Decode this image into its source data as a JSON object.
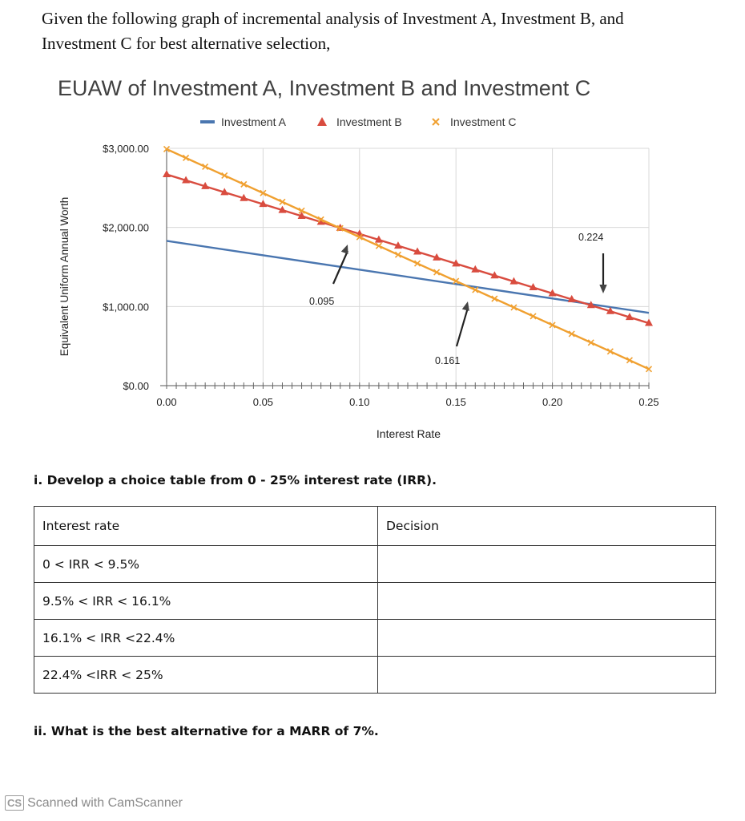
{
  "intro": {
    "text": "Given the following graph of incremental analysis of Investment A, Investment B, and Investment C for best alternative selection,"
  },
  "chart_data": {
    "type": "line",
    "title": "EUAW of Investment A, Investment B and Investment C",
    "xlabel": "Interest Rate",
    "ylabel": "Equivalent Uniform Annual Worth",
    "xlim": [
      0,
      0.25
    ],
    "ylim": [
      0,
      3000
    ],
    "x_ticks": [
      "0.00",
      "0.05",
      "0.10",
      "0.15",
      "0.20",
      "0.25"
    ],
    "y_ticks": [
      "$0.00",
      "$1,000.00",
      "$2,000.00",
      "$3,000.00"
    ],
    "legend_position": "top",
    "series": [
      {
        "name": "Investment A",
        "color": "#4a76b0",
        "marker": "none",
        "x": [
          0,
          0.25
        ],
        "y": [
          1830,
          920
        ]
      },
      {
        "name": "Investment B",
        "color": "#d94c3f",
        "marker": "triangle",
        "x": [
          0,
          0.25
        ],
        "y": [
          2670,
          790
        ]
      },
      {
        "name": "Investment C",
        "color": "#f0a030",
        "marker": "x",
        "x": [
          0,
          0.25
        ],
        "y": [
          2990,
          210
        ]
      }
    ],
    "annotations": [
      {
        "label": "0.095",
        "x": 0.095
      },
      {
        "label": "0.161",
        "x": 0.161
      },
      {
        "label": "0.224",
        "x": 0.224
      }
    ]
  },
  "question1": "i. Develop a choice table from 0 - 25% interest rate (IRR).",
  "table": {
    "headers": [
      "Interest rate",
      "Decision"
    ],
    "rows": [
      [
        "0 < IRR < 9.5%",
        ""
      ],
      [
        "9.5% < IRR < 16.1%",
        ""
      ],
      [
        "16.1% < IRR <22.4%",
        ""
      ],
      [
        "22.4% <IRR < 25%",
        ""
      ]
    ]
  },
  "question2": "ii. What is the best alternative for a MARR of 7%.",
  "footer": {
    "logo": "CS",
    "text": "Scanned with CamScanner"
  }
}
